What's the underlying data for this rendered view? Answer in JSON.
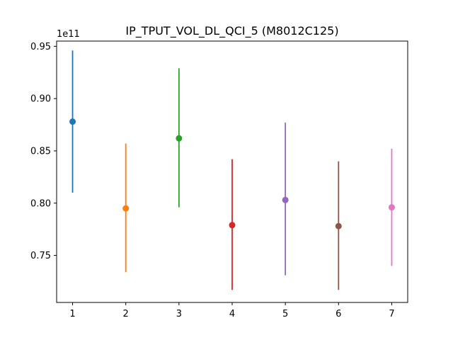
{
  "chart_data": {
    "type": "errorbar",
    "title": "IP_TPUT_VOL_DL_QCI_5 (M8012C125)",
    "xlabel": "",
    "ylabel": "",
    "offset_label": "1e11",
    "scale": 100000000000.0,
    "xlim": [
      0.7,
      7.3
    ],
    "ylim": [
      0.705,
      0.955
    ],
    "xticks": [
      1,
      2,
      3,
      4,
      5,
      6,
      7
    ],
    "xtick_labels": [
      "1",
      "2",
      "3",
      "4",
      "5",
      "6",
      "7"
    ],
    "yticks": [
      0.75,
      0.8,
      0.85,
      0.9,
      0.95
    ],
    "ytick_labels": [
      "0.75",
      "0.80",
      "0.85",
      "0.90",
      "0.95"
    ],
    "grid": false,
    "series": [
      {
        "x": 1,
        "mean": 0.878,
        "low": 0.81,
        "high": 0.946,
        "color": "#1f77b4"
      },
      {
        "x": 2,
        "mean": 0.795,
        "low": 0.734,
        "high": 0.857,
        "color": "#ff7f0e"
      },
      {
        "x": 3,
        "mean": 0.862,
        "low": 0.796,
        "high": 0.929,
        "color": "#2ca02c"
      },
      {
        "x": 4,
        "mean": 0.779,
        "low": 0.717,
        "high": 0.842,
        "color": "#d62728"
      },
      {
        "x": 5,
        "mean": 0.803,
        "low": 0.731,
        "high": 0.877,
        "color": "#9467bd"
      },
      {
        "x": 6,
        "mean": 0.778,
        "low": 0.717,
        "high": 0.84,
        "color": "#8c564b"
      },
      {
        "x": 7,
        "mean": 0.796,
        "low": 0.74,
        "high": 0.852,
        "color": "#e377c2"
      }
    ]
  }
}
